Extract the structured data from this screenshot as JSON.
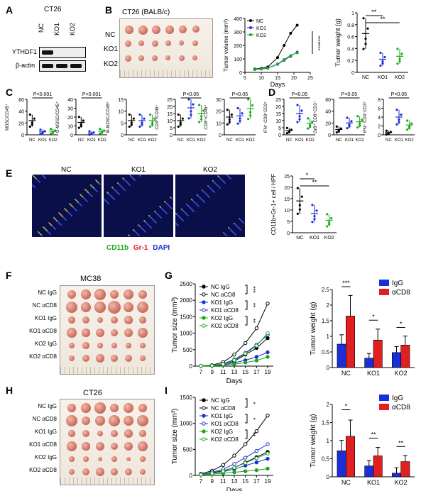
{
  "panels": {
    "A": {
      "letter": "A",
      "title": "CT26",
      "lanes": [
        "NC",
        "KO1",
        "KO2"
      ],
      "bands": [
        "YTHDF1",
        "β-actin"
      ]
    },
    "B": {
      "letter": "B",
      "photo_title": "CT26 (BALB/c)",
      "rows": [
        "NC",
        "KO1",
        "KO2"
      ]
    },
    "C": {
      "letter": "C"
    },
    "D": {
      "letter": "D"
    },
    "E": {
      "letter": "E",
      "images": [
        "NC",
        "KO1",
        "KO2"
      ],
      "stain_labels": [
        "CD11b",
        "Gr-1",
        "DAPI"
      ],
      "stain_colors": [
        "#1aa81a",
        "#e02020",
        "#1b2fd6"
      ]
    },
    "F": {
      "letter": "F",
      "title": "MC38",
      "rows": [
        "NC IgG",
        "NC αCD8",
        "KO1 IgG",
        "KO1 αCD8",
        "KO2 IgG",
        "KO2 αCD8"
      ]
    },
    "G": {
      "letter": "G"
    },
    "H": {
      "letter": "H",
      "title": "CT26",
      "rows": [
        "NC IgG",
        "NC αCD8",
        "KO1 IgG",
        "KO1 αCD8",
        "KO2 IgG",
        "KO2 αCD8"
      ]
    },
    "I": {
      "letter": "I"
    }
  },
  "chart_data": [
    {
      "id": "B_volume",
      "type": "line",
      "x": [
        8,
        10,
        12,
        15,
        17,
        19,
        21
      ],
      "xlabel": "Days",
      "ylabel": "Tumor volume (mm³)",
      "xlim": [
        5,
        25
      ],
      "ylim": [
        0,
        400
      ],
      "yticks": [
        0,
        100,
        200,
        300,
        400
      ],
      "xticks": [
        5,
        10,
        15,
        20,
        25
      ],
      "series": [
        {
          "name": "NC",
          "color": "#000000",
          "values": [
            25,
            30,
            40,
            110,
            200,
            290,
            350
          ]
        },
        {
          "name": "KO1",
          "color": "#1b2fd6",
          "values": [
            22,
            25,
            30,
            60,
            90,
            120,
            150
          ]
        },
        {
          "name": "KO2",
          "color": "#1aa81a",
          "values": [
            22,
            26,
            32,
            62,
            95,
            125,
            145
          ]
        }
      ],
      "annotations": [
        "****",
        "****"
      ]
    },
    {
      "id": "B_weight",
      "type": "scatter",
      "categories": [
        "NC",
        "KO1",
        "KO2"
      ],
      "ylabel": "Tumor weight (g)",
      "ylim": [
        0,
        1.0
      ],
      "yticks": [
        0.0,
        0.2,
        0.4,
        0.6,
        0.8,
        1.0
      ],
      "means": [
        0.65,
        0.22,
        0.27
      ],
      "colors": [
        "#000000",
        "#1b2fd6",
        "#1aa81a"
      ],
      "annotations": [
        "**",
        "**"
      ]
    },
    {
      "id": "C1",
      "type": "scatter",
      "ylabel": "MDSC/CD45⁺",
      "categories": [
        "NC",
        "KO1",
        "KO2"
      ],
      "ylim": [
        0,
        60
      ],
      "yticks": [
        0,
        20,
        40,
        60
      ],
      "means": [
        24,
        5,
        6
      ],
      "annotation": "P<0.001"
    },
    {
      "id": "C2",
      "type": "scatter",
      "ylabel": "G-MDSC/CD45⁺",
      "categories": [
        "NC",
        "KO1",
        "KO2"
      ],
      "ylim": [
        0,
        40
      ],
      "yticks": [
        0,
        10,
        20,
        30,
        40
      ],
      "means": [
        14,
        2,
        4
      ],
      "annotation": "P<0.001"
    },
    {
      "id": "C3",
      "type": "scatter",
      "ylabel": "M-MDSC/CD45⁺",
      "categories": [
        "NC",
        "KO1",
        "KO2"
      ],
      "ylim": [
        0,
        15
      ],
      "yticks": [
        0,
        5,
        10,
        15
      ],
      "means": [
        6,
        6,
        6
      ],
      "annotation": ""
    },
    {
      "id": "C4",
      "type": "scatter",
      "ylabel": "CD4⁺/CD45⁺",
      "categories": [
        "NC",
        "KO1",
        "KO2"
      ],
      "ylim": [
        0,
        25
      ],
      "yticks": [
        0,
        5,
        10,
        15,
        20,
        25
      ],
      "means": [
        10,
        19,
        15
      ],
      "annotation": "P<0.05"
    },
    {
      "id": "C5",
      "type": "scatter",
      "ylabel": "CD8⁺/CD45⁺",
      "categories": [
        "NC",
        "KO1",
        "KO2"
      ],
      "ylim": [
        0,
        30
      ],
      "yticks": [
        0,
        10,
        20,
        30
      ],
      "means": [
        15,
        16,
        22
      ],
      "annotation": "P<0.05"
    },
    {
      "id": "D1",
      "type": "scatter",
      "ylabel": "IFN⁺ CD8⁺CD3⁺",
      "categories": [
        "NC",
        "KO1",
        "KO2"
      ],
      "ylim": [
        0,
        25
      ],
      "yticks": [
        0,
        5,
        10,
        15,
        20,
        25
      ],
      "means": [
        3,
        15,
        8
      ],
      "annotation": "P<0.05"
    },
    {
      "id": "D2",
      "type": "scatter",
      "ylabel": "GrB⁺ CD8⁺CD3⁺",
      "categories": [
        "NC",
        "KO1",
        "KO2"
      ],
      "ylim": [
        0,
        60
      ],
      "yticks": [
        0,
        20,
        40,
        60
      ],
      "means": [
        9,
        20,
        22
      ],
      "annotation": "P<0.05"
    },
    {
      "id": "D3",
      "type": "scatter",
      "ylabel": "IFN⁺ CD4⁺CD3⁺",
      "categories": [
        "NC",
        "KO1",
        "KO2"
      ],
      "ylim": [
        0,
        8
      ],
      "yticks": [
        0,
        2,
        4,
        6,
        8
      ],
      "means": [
        0.5,
        4,
        2.2
      ],
      "annotation": "P<0.05"
    },
    {
      "id": "E_quant",
      "type": "scatter",
      "ylabel": "CD11b+Gr-1+ cell / HPF",
      "categories": [
        "NC",
        "KO1",
        "KO2"
      ],
      "ylim": [
        0,
        25
      ],
      "yticks": [
        0,
        5,
        10,
        15,
        20,
        25
      ],
      "means": [
        14,
        8.5,
        5.5
      ],
      "annotations": [
        "*",
        "**"
      ]
    },
    {
      "id": "G_size",
      "type": "line",
      "x": [
        7,
        9,
        11,
        13,
        15,
        17,
        19
      ],
      "xlabel": "Days",
      "ylabel": "Tumor size (mm³)",
      "ylim": [
        0,
        2500
      ],
      "yticks": [
        0,
        500,
        1000,
        1500,
        2000,
        2500
      ],
      "series": [
        {
          "name": "NC IgG",
          "color": "#000000",
          "filled": true,
          "values": [
            10,
            20,
            60,
            150,
            350,
            550,
            850
          ]
        },
        {
          "name": "NC αCD8",
          "color": "#000000",
          "filled": false,
          "values": [
            10,
            30,
            120,
            350,
            700,
            1150,
            1900
          ]
        },
        {
          "name": "KO1 IgG",
          "color": "#1b2fd6",
          "filled": true,
          "values": [
            8,
            15,
            40,
            100,
            180,
            280,
            420
          ]
        },
        {
          "name": "KO1 αCD8",
          "color": "#1b2fd6",
          "filled": false,
          "values": [
            8,
            20,
            70,
            200,
            400,
            650,
            950
          ]
        },
        {
          "name": "KO2 IgG",
          "color": "#1aa81a",
          "filled": true,
          "values": [
            6,
            10,
            25,
            60,
            110,
            170,
            280
          ]
        },
        {
          "name": "KO2 αCD8",
          "color": "#1aa81a",
          "filled": false,
          "values": [
            8,
            18,
            60,
            180,
            380,
            620,
            1000
          ]
        }
      ],
      "annotations": [
        "***",
        "**",
        "**"
      ]
    },
    {
      "id": "G_weight",
      "type": "bar",
      "categories": [
        "NC",
        "KO1",
        "KO2"
      ],
      "ylabel": "Tumor weight (g)",
      "ylim": [
        0,
        2.5
      ],
      "yticks": [
        0.0,
        0.5,
        1.0,
        1.5,
        2.0,
        2.5
      ],
      "series": [
        {
          "name": "IgG",
          "color": "#1b2fd6",
          "values": [
            0.75,
            0.3,
            0.48
          ]
        },
        {
          "name": "αCD8",
          "color": "#e02020",
          "values": [
            1.65,
            0.88,
            0.72
          ]
        }
      ],
      "annotations": [
        "***",
        "*",
        "*"
      ]
    },
    {
      "id": "I_size",
      "type": "line",
      "x": [
        7,
        9,
        11,
        13,
        15,
        17,
        19
      ],
      "xlabel": "Days",
      "ylabel": "Tumor size (mm³)",
      "ylim": [
        0,
        1500
      ],
      "yticks": [
        0,
        500,
        1000,
        1500
      ],
      "series": [
        {
          "name": "NC IgG",
          "color": "#000000",
          "filled": true,
          "values": [
            20,
            50,
            90,
            150,
            250,
            350,
            450
          ]
        },
        {
          "name": "NC αCD8",
          "color": "#000000",
          "filled": false,
          "values": [
            30,
            90,
            200,
            380,
            600,
            850,
            1150
          ]
        },
        {
          "name": "KO1 IgG",
          "color": "#1b2fd6",
          "filled": true,
          "values": [
            15,
            40,
            70,
            120,
            190,
            250,
            320
          ]
        },
        {
          "name": "KO1 αCD8",
          "color": "#1b2fd6",
          "filled": false,
          "values": [
            20,
            60,
            120,
            220,
            340,
            470,
            600
          ]
        },
        {
          "name": "KO2 IgG",
          "color": "#1aa81a",
          "filled": true,
          "values": [
            10,
            25,
            40,
            60,
            80,
            100,
            130
          ]
        },
        {
          "name": "KO2 αCD8",
          "color": "#1aa81a",
          "filled": false,
          "values": [
            15,
            40,
            80,
            150,
            240,
            330,
            420
          ]
        }
      ],
      "annotations": [
        "*",
        "*",
        "**"
      ]
    },
    {
      "id": "I_weight",
      "type": "bar",
      "categories": [
        "NC",
        "KO1",
        "KO2"
      ],
      "ylabel": "Tumor weight (g)",
      "ylim": [
        0,
        2.0
      ],
      "yticks": [
        0.0,
        0.5,
        1.0,
        1.5,
        2.0
      ],
      "series": [
        {
          "name": "IgG",
          "color": "#1b2fd6",
          "values": [
            0.72,
            0.3,
            0.1
          ]
        },
        {
          "name": "αCD8",
          "color": "#e02020",
          "values": [
            1.12,
            0.58,
            0.42
          ]
        }
      ],
      "annotations": [
        "*",
        "**",
        "**"
      ]
    }
  ]
}
